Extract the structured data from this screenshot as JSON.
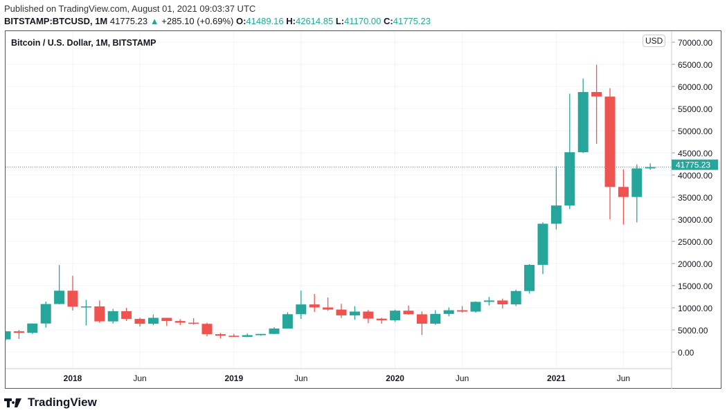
{
  "header": {
    "published": "Published on TradingView.com, August 01, 2021 09:03:37 UTC",
    "symbol": "BITSTAMP:BTCUSD, 1M",
    "last": "41775.23",
    "change": "+285.10 (+0.69%)",
    "o_label": "O:",
    "o": "41489.16",
    "h_label": "H:",
    "h": "42614.85",
    "l_label": "L:",
    "l": "41170.00",
    "c_label": "C:",
    "c": "41775.23"
  },
  "chart_title": "Bitcoin / U.S. Dollar, 1M, BITSTAMP",
  "currency": "USD",
  "brand": "TradingView",
  "colors": {
    "up": "#26a69a",
    "down": "#ef5350",
    "grid": "#f0f3fa"
  },
  "chart_data": {
    "type": "candlestick",
    "title": "Bitcoin / U.S. Dollar, 1M, BITSTAMP",
    "ylim": [
      -4000,
      70000
    ],
    "yticks": [
      "0.00",
      "5000.00",
      "10000.00",
      "15000.00",
      "20000.00",
      "25000.00",
      "30000.00",
      "35000.00",
      "40000.00",
      "45000.00",
      "50000.00",
      "55000.00",
      "60000.00",
      "65000.00",
      "70000.00"
    ],
    "xticks": [
      {
        "label": "2018",
        "month": "2018-01"
      },
      {
        "label": "Jun",
        "month": "2018-06"
      },
      {
        "label": "2019",
        "month": "2019-01"
      },
      {
        "label": "Jun",
        "month": "2019-06"
      },
      {
        "label": "2020",
        "month": "2020-01"
      },
      {
        "label": "Jun",
        "month": "2020-06"
      },
      {
        "label": "2021",
        "month": "2021-01"
      },
      {
        "label": "Jun",
        "month": "2021-06"
      }
    ],
    "last_price": "41775.23",
    "grid": true,
    "candles": [
      [
        "2017-08",
        2870,
        4760,
        2580,
        4700
      ],
      [
        "2017-09",
        4700,
        4980,
        2970,
        4340
      ],
      [
        "2017-10",
        4340,
        6470,
        4110,
        6450
      ],
      [
        "2017-11",
        6450,
        11400,
        5520,
        10850
      ],
      [
        "2017-12",
        10850,
        19666,
        10800,
        13860
      ],
      [
        "2018-01",
        13860,
        17240,
        9400,
        10250
      ],
      [
        "2018-02",
        10250,
        11800,
        6000,
        10310
      ],
      [
        "2018-03",
        10310,
        11680,
        6600,
        6930
      ],
      [
        "2018-04",
        6930,
        9750,
        6430,
        9240
      ],
      [
        "2018-05",
        9240,
        10000,
        7040,
        7490
      ],
      [
        "2018-06",
        7490,
        7770,
        5780,
        6390
      ],
      [
        "2018-07",
        6390,
        8500,
        6080,
        7730
      ],
      [
        "2018-08",
        7730,
        7750,
        5880,
        7010
      ],
      [
        "2018-09",
        7010,
        7410,
        6100,
        6630
      ],
      [
        "2018-10",
        6630,
        7680,
        6200,
        6370
      ],
      [
        "2018-11",
        6370,
        6620,
        3550,
        4040
      ],
      [
        "2018-12",
        4040,
        4310,
        3120,
        3690
      ],
      [
        "2019-01",
        3690,
        4100,
        3390,
        3440
      ],
      [
        "2019-02",
        3440,
        4200,
        3370,
        3820
      ],
      [
        "2019-03",
        3820,
        4100,
        3700,
        4100
      ],
      [
        "2019-04",
        4100,
        5600,
        4050,
        5320
      ],
      [
        "2019-05",
        5320,
        9000,
        5330,
        8550
      ],
      [
        "2019-06",
        8550,
        13880,
        7500,
        10760
      ],
      [
        "2019-07",
        10760,
        13130,
        9060,
        10080
      ],
      [
        "2019-08",
        10080,
        12330,
        9330,
        9600
      ],
      [
        "2019-09",
        9600,
        10900,
        7710,
        8290
      ],
      [
        "2019-10",
        8290,
        10370,
        7300,
        9150
      ],
      [
        "2019-11",
        9150,
        9510,
        6510,
        7550
      ],
      [
        "2019-12",
        7550,
        7750,
        6420,
        7190
      ],
      [
        "2020-01",
        7190,
        9580,
        6850,
        9350
      ],
      [
        "2020-02",
        9350,
        10500,
        8450,
        8530
      ],
      [
        "2020-03",
        8530,
        9180,
        3850,
        6410
      ],
      [
        "2020-04",
        6410,
        9470,
        6150,
        8620
      ],
      [
        "2020-05",
        8620,
        10070,
        8100,
        9450
      ],
      [
        "2020-06",
        9450,
        10390,
        8900,
        9140
      ],
      [
        "2020-07",
        9140,
        11450,
        8900,
        11340
      ],
      [
        "2020-08",
        11340,
        12470,
        10530,
        11650
      ],
      [
        "2020-09",
        11650,
        12070,
        9850,
        10780
      ],
      [
        "2020-10",
        10780,
        14100,
        10400,
        13790
      ],
      [
        "2020-11",
        13790,
        19850,
        13200,
        19700
      ],
      [
        "2020-12",
        19700,
        29300,
        17600,
        28990
      ],
      [
        "2021-01",
        28990,
        41950,
        27700,
        33110
      ],
      [
        "2021-02",
        33110,
        58350,
        32300,
        45140
      ],
      [
        "2021-03",
        45140,
        61780,
        44950,
        58740
      ],
      [
        "2021-04",
        58740,
        64900,
        47040,
        57720
      ],
      [
        "2021-05",
        57720,
        59600,
        30000,
        37300
      ],
      [
        "2021-06",
        37300,
        41300,
        28800,
        35040
      ],
      [
        "2021-07",
        35040,
        42400,
        29300,
        41490
      ],
      [
        "2021-08",
        41489.16,
        42614.85,
        41170.0,
        41775.23
      ]
    ]
  }
}
